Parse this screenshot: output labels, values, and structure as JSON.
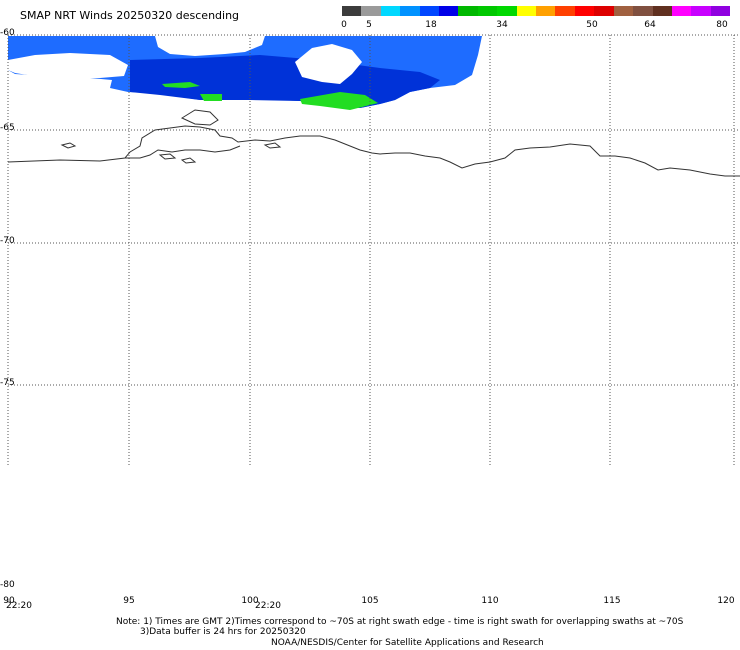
{
  "title": "SMAP NRT Winds  20250320 descending",
  "colorbar": {
    "labels": [
      "0",
      "5",
      "18",
      "34",
      "50",
      "64",
      "80"
    ],
    "colors": [
      "#3c3c3c",
      "#9a9a9a",
      "#00d8ff",
      "#0092ff",
      "#0046ff",
      "#0000e8",
      "#00b800",
      "#00c800",
      "#00d800",
      "#ffff00",
      "#ffa000",
      "#ff4000",
      "#ff0000",
      "#dd0000",
      "#a06040",
      "#805040",
      "#603020",
      "#ff00ff",
      "#c800ff",
      "#9000e0"
    ]
  },
  "lat_labels": [
    "-60",
    "-65",
    "-70",
    "-75",
    "-80"
  ],
  "lon_labels": [
    "90",
    "95",
    "100",
    "105",
    "110",
    "115",
    "120"
  ],
  "time_labels": [
    "22:20",
    "22:20"
  ],
  "notes": {
    "line1": "Note: 1) Times are GMT 2)Times correspond to ~70S at right swath edge - time is right swath for overlapping swaths at ~70S",
    "line2": "3)Data buffer is 24 hrs for 20250320",
    "line3": "NOAA/NESDIS/Center for Satellite Applications and Research"
  },
  "colors": {
    "wind_light": "#1e6cff",
    "wind_mid": "#0050f0",
    "wind_dark": "#0032d8",
    "wind_green": "#22dd22",
    "coast": "#333333",
    "grid": "#555555"
  }
}
